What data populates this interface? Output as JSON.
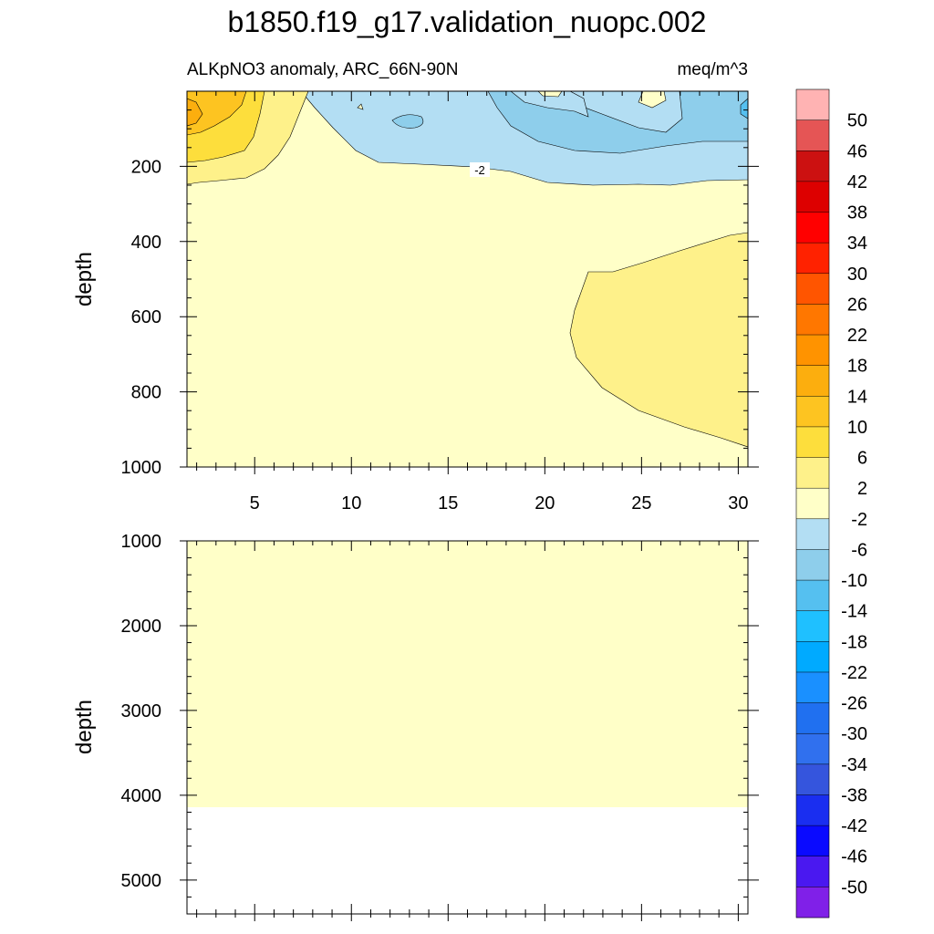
{
  "chart_data": {
    "type": "contour",
    "title": "b1850.f19_g17.validation_nuopc.002",
    "subtitle_left": "ALKpNO3 anomaly, ARC_66N-90N",
    "subtitle_right": "meq/m^3",
    "x_ticks": [
      "5",
      "10",
      "15",
      "20",
      "25",
      "30"
    ],
    "x_tick_values": [
      5,
      10,
      15,
      20,
      25,
      30
    ],
    "xlim": [
      1.5,
      30.5
    ],
    "grid": false,
    "panels": [
      {
        "name": "upper",
        "ylabel": "depth",
        "ylim": [
          0,
          1000
        ],
        "y_ticks": [
          "200",
          "400",
          "600",
          "800",
          "1000"
        ],
        "y_tick_values": [
          200,
          400,
          600,
          800,
          1000
        ],
        "contour_label": "-2",
        "regions": [
          {
            "range": "-2 to 2",
            "color": "#FFFFC8",
            "extent": "background from ~250 m to 1000 m"
          },
          {
            "range": "-6 to -2",
            "color": "#B3DEF3",
            "extent": "surface to ~200-250 m, x 8-30"
          },
          {
            "range": "-10 to -6",
            "color": "#8ECEEB",
            "extent": "surface to ~150 m, x 17-30"
          },
          {
            "range": "-14 to -10",
            "color": "#55C0F0",
            "extent": "small patch near surface at x 30"
          },
          {
            "range": "2 to 6",
            "color": "#FEF18A",
            "extent": "x 1.5-8 surface to 250 m; x 21.5-30.5, 380-950 m"
          },
          {
            "range": "6 to 10",
            "color": "#FDDE3C",
            "extent": "x 1.5-5.5 surface to 180 m"
          },
          {
            "range": "10 to 14",
            "color": "#FDC421",
            "extent": "x 1.5-4.5 surface to 120 m"
          },
          {
            "range": "14 to 18",
            "color": "#FCAE0E",
            "extent": "x 1.5-2.5 near surface"
          }
        ]
      },
      {
        "name": "lower",
        "ylabel": "depth",
        "ylim": [
          1000,
          5400
        ],
        "y_ticks": [
          "1000",
          "2000",
          "3000",
          "4000",
          "5000"
        ],
        "y_tick_values": [
          1000,
          2000,
          3000,
          4000,
          5000
        ],
        "regions": [
          {
            "range": "-2 to 2",
            "color": "#FFFFC8",
            "extent": "1000 m to ~4120 m, all x"
          }
        ]
      }
    ],
    "colorbar": {
      "labels": [
        "50",
        "46",
        "42",
        "38",
        "34",
        "30",
        "26",
        "22",
        "18",
        "14",
        "10",
        "6",
        "2",
        "-2",
        "-6",
        "-10",
        "-14",
        "-18",
        "-22",
        "-26",
        "-30",
        "-34",
        "-38",
        "-42",
        "-46",
        "-50"
      ],
      "colors": [
        "#FFB3B3",
        "#E55555",
        "#CC1111",
        "#DD0000",
        "#FF0000",
        "#FF2200",
        "#FF5500",
        "#FF7700",
        "#FF9300",
        "#FCAE0E",
        "#FDC421",
        "#FDDE3C",
        "#FEF18A",
        "#FFFFC8",
        "#B3DEF3",
        "#8ECEEB",
        "#55C0F0",
        "#1FC0FF",
        "#00AAFF",
        "#1A90FF",
        "#2070F0",
        "#3070EE",
        "#3555DD",
        "#1A2EF0",
        "#0A0AFF",
        "#4A18F0",
        "#8020E8"
      ]
    }
  }
}
